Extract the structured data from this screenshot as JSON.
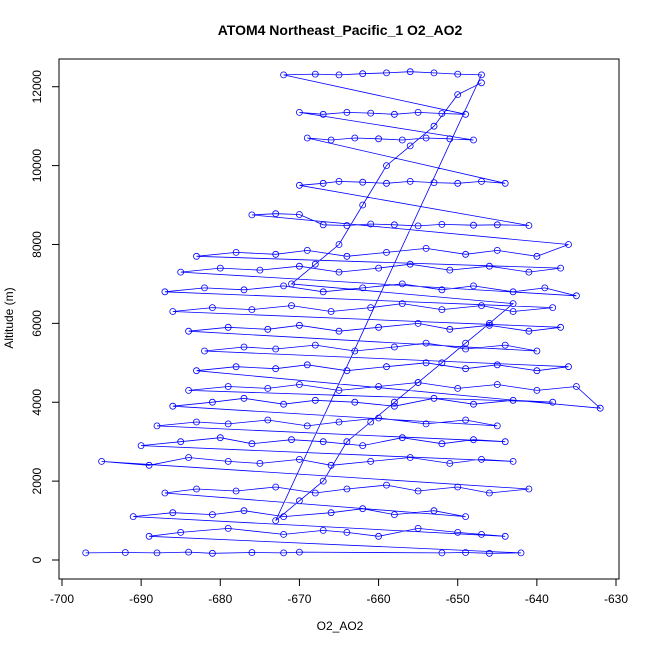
{
  "chart_data": {
    "type": "scatter",
    "title": "ATOM4 Northeast_Pacific_1 O2_AO2",
    "xlabel": "O2_AO2",
    "ylabel": "Altitude (m)",
    "xlim": [
      -700,
      -630
    ],
    "ylim": [
      0,
      12500
    ],
    "x_ticks": [
      -700,
      -690,
      -680,
      -670,
      -660,
      -650,
      -640,
      -630
    ],
    "y_ticks": [
      0,
      2000,
      4000,
      6000,
      8000,
      10000,
      12000
    ],
    "x_tick_labels": [
      "-700",
      "-690",
      "-680",
      "-670",
      "-660",
      "-650",
      "-640",
      "-630"
    ],
    "y_tick_labels": [
      "0",
      "2000",
      "4000",
      "6000",
      "8000",
      "10000",
      "12000"
    ],
    "grid": false,
    "legend": "none",
    "series_style": "points-and-lines",
    "color": "#0000ff",
    "series": [
      {
        "x": [
          -697,
          -692,
          -688,
          -684,
          -681,
          -676,
          -672,
          -670,
          -652,
          -649,
          -646,
          -642,
          -689,
          -685,
          -679,
          -672,
          -667,
          -664,
          -660,
          -655,
          -650,
          -647,
          -644,
          -691,
          -686,
          -681,
          -677,
          -672,
          -666,
          -662,
          -658,
          -653,
          -649,
          -687,
          -683,
          -678,
          -673,
          -668,
          -664,
          -659,
          -655,
          -650,
          -646,
          -641,
          -695,
          -689,
          -684,
          -679,
          -675,
          -670,
          -666,
          -661,
          -656,
          -651,
          -647,
          -643,
          -690,
          -685,
          -680,
          -676,
          -671,
          -667,
          -662,
          -657,
          -652,
          -648,
          -644,
          -688,
          -683,
          -679,
          -674,
          -669,
          -665,
          -660,
          -654,
          -649,
          -645,
          -686,
          -681,
          -677,
          -672,
          -668,
          -663,
          -658,
          -653,
          -648,
          -643,
          -638,
          -684,
          -679,
          -674,
          -670,
          -665,
          -660,
          -655,
          -650,
          -645,
          -640,
          -635,
          -632,
          -683,
          -678,
          -673,
          -669,
          -664,
          -659,
          -654,
          -649,
          -645,
          -640,
          -636,
          -682,
          -677,
          -673,
          -668,
          -663,
          -658,
          -654,
          -649,
          -644,
          -640,
          -684,
          -679,
          -674,
          -670,
          -665,
          -660,
          -655,
          -651,
          -646,
          -641,
          -637,
          -686,
          -681,
          -676,
          -671,
          -666,
          -661,
          -657,
          -652,
          -647,
          -643,
          -638,
          -687,
          -682,
          -677,
          -672,
          -667,
          -662,
          -657,
          -652,
          -648,
          -643,
          -639,
          -635,
          -685,
          -680,
          -675,
          -670,
          -665,
          -660,
          -656,
          -651,
          -646,
          -641,
          -637,
          -683,
          -678,
          -673,
          -669,
          -664,
          -659,
          -654,
          -649,
          -645,
          -640,
          -636,
          -676,
          -673,
          -670,
          -667,
          -664,
          -661,
          -658,
          -655,
          -652,
          -648,
          -645,
          -641,
          -670,
          -667,
          -665,
          -662,
          -659,
          -656,
          -653,
          -650,
          -647,
          -644,
          -669,
          -666,
          -663,
          -660,
          -657,
          -654,
          -651,
          -648,
          -670,
          -667,
          -664,
          -661,
          -658,
          -655,
          -652,
          -649,
          -672,
          -668,
          -665,
          -662,
          -659,
          -656,
          -653,
          -650,
          -647,
          -673,
          -670,
          -667,
          -664,
          -661,
          -658,
          -655,
          -652,
          -649,
          -646,
          -643,
          -671,
          -668,
          -665,
          -662,
          -659,
          -656,
          -653,
          -650,
          -647
        ],
        "y": [
          180,
          190,
          180,
          200,
          170,
          190,
          180,
          200,
          180,
          190,
          170,
          180,
          600,
          700,
          800,
          650,
          750,
          700,
          600,
          800,
          700,
          650,
          600,
          1100,
          1200,
          1150,
          1250,
          1100,
          1200,
          1300,
          1150,
          1250,
          1100,
          1700,
          1800,
          1750,
          1850,
          1700,
          1800,
          1900,
          1750,
          1850,
          1700,
          1800,
          2500,
          2400,
          2600,
          2500,
          2450,
          2550,
          2400,
          2500,
          2600,
          2450,
          2550,
          2500,
          2900,
          3000,
          3100,
          2950,
          3050,
          3000,
          2900,
          3100,
          2950,
          3050,
          3000,
          3400,
          3500,
          3450,
          3550,
          3400,
          3500,
          3600,
          3450,
          3550,
          3400,
          3900,
          4000,
          4100,
          3950,
          4050,
          4000,
          3900,
          4100,
          3950,
          4050,
          4000,
          4300,
          4400,
          4350,
          4450,
          4300,
          4400,
          4500,
          4350,
          4450,
          4300,
          4400,
          3850,
          4800,
          4900,
          4850,
          4950,
          4800,
          4900,
          5000,
          4850,
          4950,
          4800,
          4900,
          5300,
          5400,
          5350,
          5450,
          5300,
          5400,
          5500,
          5350,
          5450,
          5300,
          5800,
          5900,
          5850,
          5950,
          5800,
          5900,
          6000,
          5850,
          5950,
          5800,
          5900,
          6300,
          6400,
          6350,
          6450,
          6300,
          6400,
          6500,
          6350,
          6450,
          6300,
          6400,
          6800,
          6900,
          6850,
          6950,
          6800,
          6900,
          7000,
          6850,
          6950,
          6800,
          6900,
          6700,
          7300,
          7400,
          7350,
          7450,
          7300,
          7400,
          7500,
          7350,
          7450,
          7300,
          7400,
          7700,
          7800,
          7750,
          7850,
          7700,
          7800,
          7900,
          7750,
          7850,
          7700,
          8000,
          8750,
          8780,
          8760,
          8500,
          8480,
          8520,
          8500,
          8470,
          8510,
          8490,
          8500,
          8480,
          9500,
          9550,
          9600,
          9580,
          9550,
          9600,
          9570,
          9550,
          9600,
          9550,
          10700,
          10650,
          10700,
          10680,
          10650,
          10700,
          10680,
          10650,
          11350,
          11300,
          11350,
          11330,
          11300,
          11350,
          11320,
          11300,
          12300,
          12320,
          12300,
          12330,
          12350,
          12380,
          12350,
          12320,
          12300,
          1000,
          1500,
          2000,
          3000,
          3500,
          4000,
          4500,
          5000,
          5500,
          6000,
          6500,
          7000,
          7500,
          8000,
          9000,
          10000,
          10500,
          11000,
          11800,
          12100
        ]
      }
    ]
  }
}
